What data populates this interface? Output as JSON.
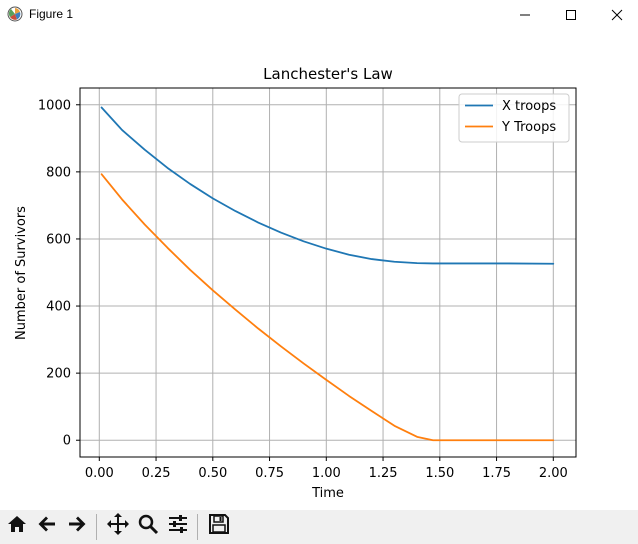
{
  "window": {
    "title": "Figure 1",
    "icons": [
      "app-icon",
      "minimize-icon",
      "maximize-icon",
      "close-icon"
    ]
  },
  "toolbar": {
    "buttons": [
      "home-icon",
      "back-icon",
      "forward-icon",
      "pan-icon",
      "zoom-icon",
      "configure-subplots-icon",
      "save-icon"
    ]
  },
  "colors": {
    "x_series": "#1f77b4",
    "y_series": "#ff7f0e",
    "grid": "#b0b0b0"
  },
  "chart_data": {
    "type": "line",
    "title": "Lanchester's Law",
    "xlabel": "Time",
    "ylabel": "Number of Survivors",
    "xlim": [
      -0.085,
      2.1
    ],
    "ylim": [
      -50,
      1050
    ],
    "xticks": [
      0.0,
      0.25,
      0.5,
      0.75,
      1.0,
      1.25,
      1.5,
      1.75,
      2.0
    ],
    "xtick_labels": [
      "0.00",
      "0.25",
      "0.50",
      "0.75",
      "1.00",
      "1.25",
      "1.50",
      "1.75",
      "2.00"
    ],
    "yticks": [
      0,
      200,
      400,
      600,
      800,
      1000
    ],
    "ytick_labels": [
      "0",
      "200",
      "400",
      "600",
      "800",
      "1000"
    ],
    "grid": true,
    "legend_position": "top-right",
    "series": [
      {
        "name": "X troops",
        "x": [
          0.01,
          0.1,
          0.2,
          0.3,
          0.4,
          0.5,
          0.6,
          0.7,
          0.8,
          0.9,
          1.0,
          1.1,
          1.2,
          1.3,
          1.4,
          1.47,
          1.6,
          1.8,
          2.0
        ],
        "y": [
          992,
          925,
          866,
          812,
          764,
          721,
          683,
          649,
          619,
          593,
          571,
          553,
          540,
          532,
          528,
          527,
          527,
          527,
          526
        ]
      },
      {
        "name": "Y Troops",
        "x": [
          0.01,
          0.1,
          0.2,
          0.3,
          0.4,
          0.5,
          0.6,
          0.7,
          0.8,
          0.9,
          1.0,
          1.1,
          1.2,
          1.3,
          1.4,
          1.47,
          1.6,
          1.8,
          2.0
        ],
        "y": [
          793,
          718,
          643,
          574,
          508,
          447,
          389,
          333,
          280,
          229,
          180,
          132,
          87,
          43,
          10,
          0,
          0,
          0,
          0
        ]
      }
    ]
  }
}
